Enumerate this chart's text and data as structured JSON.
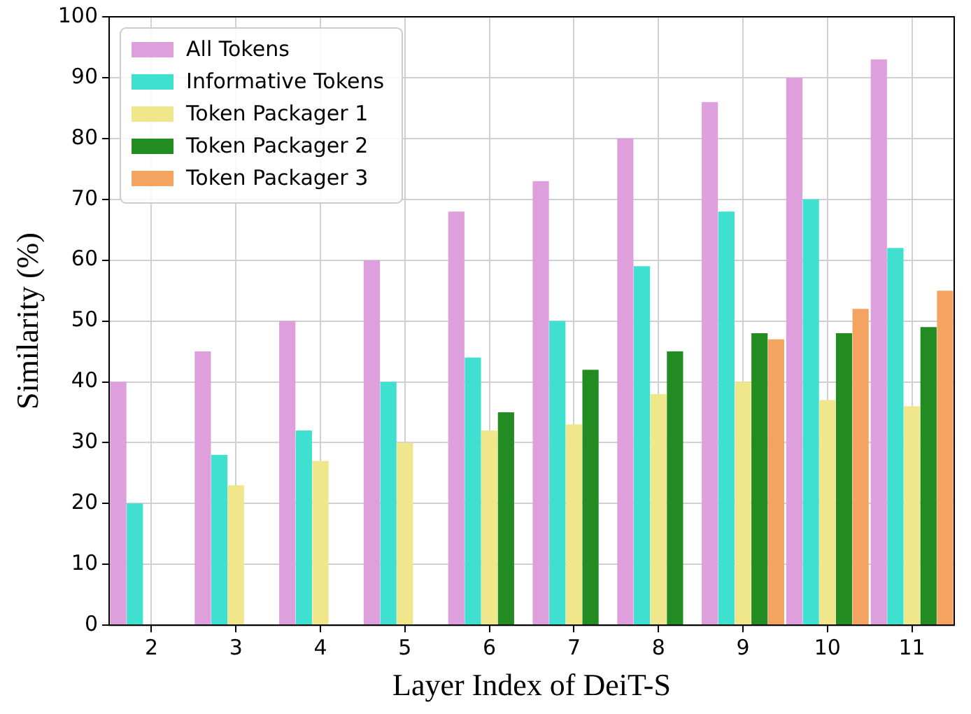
{
  "chart_data": {
    "type": "bar",
    "xlabel": "Layer Index of DeiT-S",
    "ylabel": "Similarity (%)",
    "categories": [
      "2",
      "3",
      "4",
      "5",
      "6",
      "7",
      "8",
      "9",
      "10",
      "11"
    ],
    "series": [
      {
        "name": "All Tokens",
        "color": "#dda0dd",
        "values": [
          40,
          45,
          50,
          60,
          68,
          73,
          80,
          86,
          90,
          93
        ]
      },
      {
        "name": "Informative Tokens",
        "color": "#40e0d0",
        "values": [
          20,
          28,
          32,
          40,
          44,
          50,
          59,
          68,
          70,
          62
        ]
      },
      {
        "name": "Token Packager 1",
        "color": "#f0e68c",
        "values": [
          null,
          23,
          27,
          30,
          32,
          33,
          38,
          40,
          37,
          36
        ]
      },
      {
        "name": "Token Packager 2",
        "color": "#228b22",
        "values": [
          null,
          null,
          null,
          null,
          35,
          42,
          45,
          48,
          48,
          49
        ]
      },
      {
        "name": "Token Packager 3",
        "color": "#f4a460",
        "values": [
          null,
          null,
          null,
          null,
          null,
          null,
          null,
          47,
          52,
          55
        ]
      }
    ],
    "ylim": [
      0,
      100
    ],
    "yticks": [
      0,
      10,
      20,
      30,
      40,
      50,
      60,
      70,
      80,
      90,
      100
    ],
    "grid": true,
    "legend": "top left"
  }
}
